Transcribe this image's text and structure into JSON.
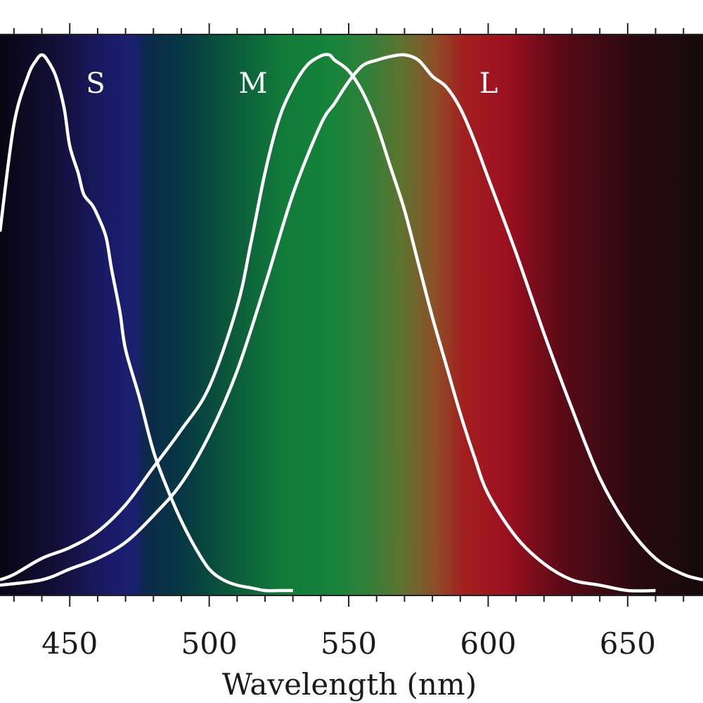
{
  "chart_data": {
    "type": "line",
    "title": "",
    "xlabel": "Wavelength (nm)",
    "ylabel": "",
    "xlim": [
      425,
      677
    ],
    "ylim": [
      0,
      1
    ],
    "x_ticks": [
      450,
      500,
      550,
      600,
      650
    ],
    "x_tick_labels": [
      "450",
      "500",
      "550",
      "600",
      "650"
    ],
    "grid": false,
    "legend": "none",
    "background": "visible spectrum gradient",
    "line_color": "#ffffff",
    "series": [
      {
        "name": "S",
        "x": [
          425,
          430,
          435,
          438,
          440,
          442,
          445,
          448,
          450,
          453,
          455,
          458,
          460,
          463,
          465,
          468,
          470,
          475,
          480,
          485,
          490,
          495,
          500,
          505,
          510,
          515,
          520,
          525,
          530
        ],
        "y": [
          0.67,
          0.87,
          0.96,
          0.99,
          1.0,
          0.99,
          0.96,
          0.9,
          0.83,
          0.78,
          0.74,
          0.72,
          0.7,
          0.66,
          0.6,
          0.52,
          0.45,
          0.36,
          0.26,
          0.19,
          0.13,
          0.08,
          0.04,
          0.02,
          0.01,
          0.005,
          0.0,
          0.0,
          0.0
        ]
      },
      {
        "name": "M",
        "x": [
          425,
          430,
          440,
          450,
          460,
          470,
          480,
          490,
          500,
          510,
          515,
          520,
          525,
          530,
          535,
          540,
          543,
          545,
          550,
          555,
          560,
          565,
          570,
          575,
          580,
          585,
          590,
          595,
          600,
          610,
          620,
          630,
          640,
          650,
          660
        ],
        "y": [
          0.02,
          0.03,
          0.06,
          0.08,
          0.11,
          0.16,
          0.23,
          0.3,
          0.38,
          0.53,
          0.65,
          0.78,
          0.88,
          0.94,
          0.98,
          0.998,
          1.0,
          0.99,
          0.97,
          0.93,
          0.87,
          0.79,
          0.71,
          0.61,
          0.51,
          0.42,
          0.33,
          0.25,
          0.18,
          0.1,
          0.05,
          0.02,
          0.01,
          0.0,
          0.0
        ]
      },
      {
        "name": "L",
        "x": [
          425,
          440,
          450,
          460,
          470,
          480,
          490,
          500,
          510,
          520,
          530,
          540,
          545,
          550,
          555,
          560,
          565,
          570,
          575,
          580,
          585,
          590,
          595,
          600,
          610,
          620,
          630,
          640,
          650,
          660,
          670,
          677
        ],
        "y": [
          0.01,
          0.02,
          0.04,
          0.06,
          0.09,
          0.14,
          0.2,
          0.29,
          0.41,
          0.57,
          0.74,
          0.87,
          0.91,
          0.95,
          0.98,
          0.99,
          0.997,
          1.0,
          0.99,
          0.96,
          0.94,
          0.9,
          0.84,
          0.77,
          0.63,
          0.48,
          0.34,
          0.21,
          0.12,
          0.06,
          0.03,
          0.02
        ]
      }
    ]
  }
}
